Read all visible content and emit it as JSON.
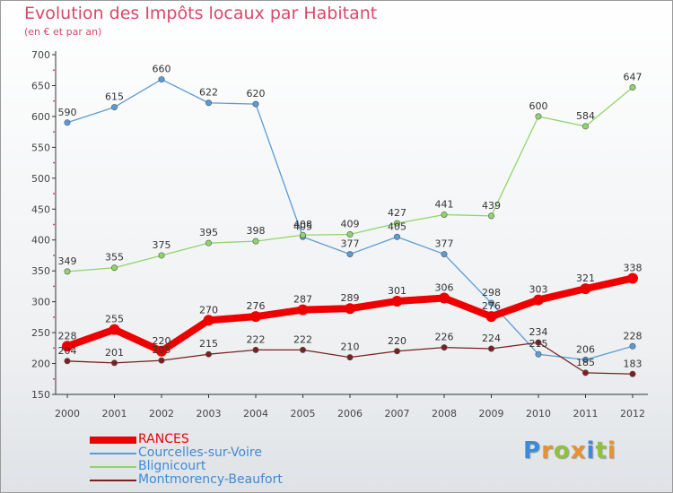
{
  "chart_data": {
    "type": "line",
    "title": "Evolution des Impôts locaux par Habitant",
    "subtitle": "(en € et par an)",
    "categories": [
      "2000",
      "2001",
      "2002",
      "2003",
      "2004",
      "2005",
      "2006",
      "2007",
      "2008",
      "2009",
      "2010",
      "2011",
      "2012"
    ],
    "ylim": [
      150,
      700
    ],
    "yticks": [
      150,
      200,
      250,
      300,
      350,
      400,
      450,
      500,
      550,
      600,
      650,
      700
    ],
    "grid": false,
    "legend_position": "bottom-left",
    "series": [
      {
        "name": "RANCES",
        "color": "#ee0000",
        "emphasized": true,
        "values": [
          228,
          255,
          220,
          270,
          276,
          287,
          289,
          301,
          306,
          276,
          303,
          321,
          338
        ]
      },
      {
        "name": "Courcelles-sur-Voire",
        "color": "#5b9bd5",
        "emphasized": false,
        "values": [
          590,
          615,
          660,
          622,
          620,
          405,
          377,
          405,
          377,
          298,
          215,
          206,
          228
        ]
      },
      {
        "name": "Blignicourt",
        "color": "#8fd56b",
        "emphasized": false,
        "values": [
          349,
          355,
          375,
          395,
          398,
          408,
          409,
          427,
          441,
          439,
          600,
          584,
          647
        ]
      },
      {
        "name": "Montmorency-Beaufort",
        "color": "#7a2020",
        "emphasized": false,
        "values": [
          204,
          201,
          205,
          215,
          222,
          222,
          210,
          220,
          226,
          224,
          234,
          185,
          183
        ]
      }
    ]
  },
  "logo": {
    "text": "Proxiti"
  }
}
